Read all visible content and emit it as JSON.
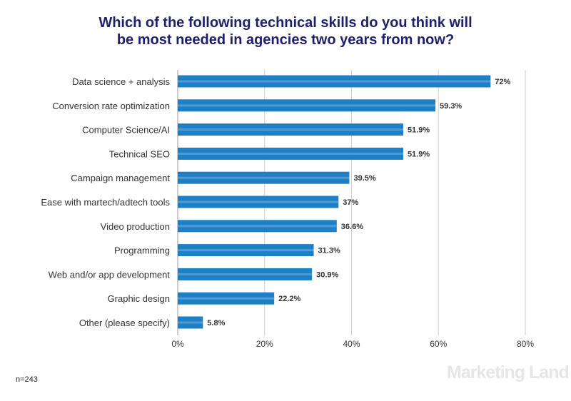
{
  "title_lines": [
    "Which of the following technical skills do you think will",
    "be most needed in agencies two years from now?"
  ],
  "footnote": "n=243",
  "watermark": "Marketing Land",
  "colors": {
    "title": "#1f1f6b",
    "bar": "#1f7fc4",
    "bar_highlight": "#6fb4e6",
    "grid": "#cfcfcf",
    "text": "#333333"
  },
  "chart_data": {
    "type": "bar",
    "orientation": "horizontal",
    "title": "Which of the following technical skills do you think will be most needed in agencies two years from now?",
    "categories": [
      "Data science + analysis",
      "Conversion rate optimization",
      "Computer Science/AI",
      "Technical SEO",
      "Campaign management",
      "Ease with martech/adtech tools",
      "Video production",
      "Programming",
      "Web and/or app development",
      "Graphic design",
      "Other (please specify)"
    ],
    "values": [
      72,
      59.3,
      51.9,
      51.9,
      39.5,
      37,
      36.6,
      31.3,
      30.9,
      22.2,
      5.8
    ],
    "data_labels": [
      "72%",
      "59.3%",
      "51.9%",
      "51.9%",
      "39.5%",
      "37%",
      "36.6%",
      "31.3%",
      "30.9%",
      "22.2%",
      "5.8%"
    ],
    "xlim": [
      0,
      80
    ],
    "xticks": [
      0,
      20,
      40,
      60,
      80
    ],
    "xtick_labels": [
      "0%",
      "20%",
      "40%",
      "60%",
      "80%"
    ],
    "grid": true,
    "legend": "none"
  }
}
